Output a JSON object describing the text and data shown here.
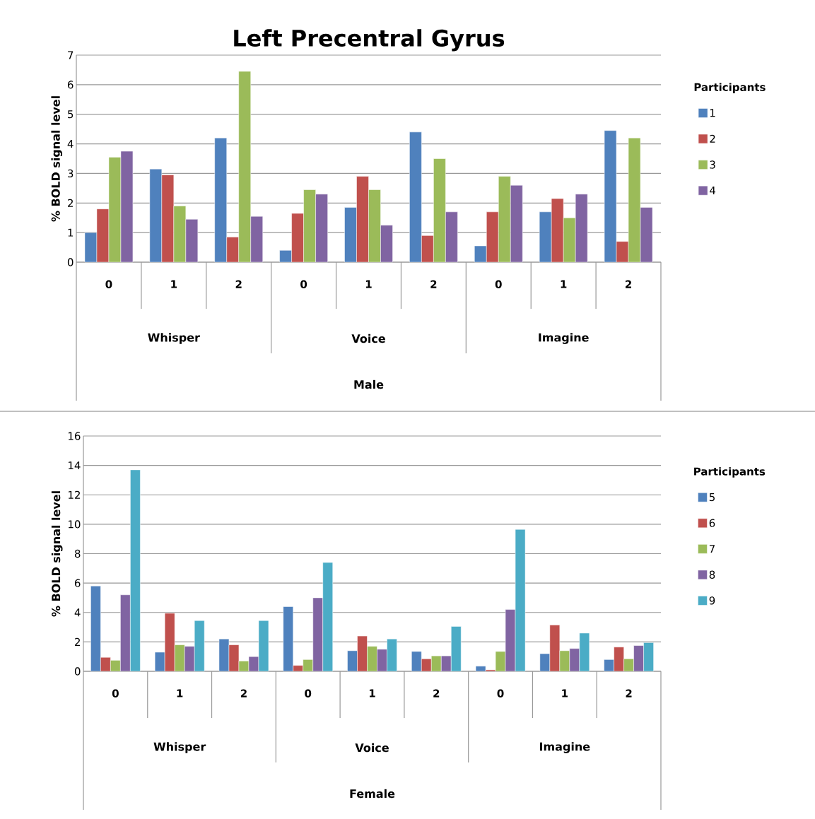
{
  "chart_data": [
    {
      "type": "bar",
      "title": "Left Precentral Gyrus",
      "ylabel": "% BOLD signal level",
      "xlabel": "Male",
      "legend_title": "Participants",
      "legend": "right",
      "grid": "y",
      "categories": [
        "0",
        "1",
        "2",
        "0",
        "1",
        "2",
        "0",
        "1",
        "2"
      ],
      "annotations": [
        "Whisper",
        "Voice",
        "Imagine"
      ],
      "ylim": [
        0,
        7
      ],
      "yticks": [
        0,
        1,
        2,
        3,
        4,
        5,
        6,
        7
      ],
      "series": [
        {
          "name": "1",
          "color": "#4f81bd",
          "values": [
            1.0,
            3.15,
            4.2,
            0.4,
            1.85,
            4.4,
            0.55,
            1.7,
            4.45
          ]
        },
        {
          "name": "2",
          "color": "#c0504d",
          "values": [
            1.8,
            2.95,
            0.85,
            1.65,
            2.9,
            0.9,
            1.7,
            2.15,
            0.7
          ]
        },
        {
          "name": "3",
          "color": "#9bbb59",
          "values": [
            3.55,
            1.9,
            6.45,
            2.45,
            2.45,
            3.5,
            2.9,
            1.5,
            4.2
          ]
        },
        {
          "name": "4",
          "color": "#8064a2",
          "values": [
            3.75,
            1.45,
            1.55,
            2.3,
            1.25,
            1.7,
            2.6,
            2.3,
            1.85
          ]
        }
      ]
    },
    {
      "type": "bar",
      "ylabel": "% BOLD signal level",
      "xlabel": "Female",
      "legend_title": "Participants",
      "legend": "right",
      "grid": "y",
      "categories": [
        "0",
        "1",
        "2",
        "0",
        "1",
        "2",
        "0",
        "1",
        "2"
      ],
      "annotations": [
        "Whisper",
        "Voice",
        "Imagine"
      ],
      "ylim": [
        0,
        16
      ],
      "yticks": [
        0,
        2,
        4,
        6,
        8,
        10,
        12,
        14,
        16
      ],
      "series": [
        {
          "name": "5",
          "color": "#4f81bd",
          "values": [
            5.8,
            1.3,
            2.2,
            4.4,
            1.4,
            1.35,
            0.35,
            1.2,
            0.8
          ]
        },
        {
          "name": "6",
          "color": "#c0504d",
          "values": [
            0.95,
            3.95,
            1.8,
            0.4,
            2.4,
            0.85,
            0.1,
            3.15,
            1.65
          ]
        },
        {
          "name": "7",
          "color": "#9bbb59",
          "values": [
            0.75,
            1.8,
            0.7,
            0.8,
            1.7,
            1.05,
            1.35,
            1.4,
            0.85
          ]
        },
        {
          "name": "8",
          "color": "#8064a2",
          "values": [
            5.2,
            1.7,
            1.0,
            5.0,
            1.5,
            1.05,
            4.2,
            1.55,
            1.75
          ]
        },
        {
          "name": "9",
          "color": "#4bacc6",
          "values": [
            13.7,
            3.45,
            3.45,
            7.4,
            2.2,
            3.05,
            9.65,
            2.6,
            1.95
          ]
        }
      ]
    }
  ]
}
